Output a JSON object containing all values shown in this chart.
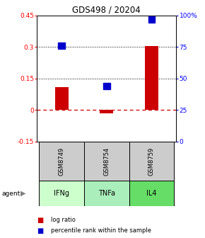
{
  "title": "GDS498 / 20204",
  "samples": [
    "GSM8749",
    "GSM8754",
    "GSM8759"
  ],
  "agents": [
    "IFNg",
    "TNFa",
    "IL4"
  ],
  "log_ratios": [
    0.11,
    -0.015,
    0.305
  ],
  "percentile_ranks": [
    76,
    44,
    97
  ],
  "ylim_left": [
    -0.15,
    0.45
  ],
  "ylim_right": [
    0,
    100
  ],
  "yticks_left": [
    -0.15,
    0.0,
    0.15,
    0.3,
    0.45
  ],
  "yticks_right": [
    0,
    25,
    50,
    75,
    100
  ],
  "ytick_labels_left": [
    "-0.15",
    "0",
    "0.15",
    "0.3",
    "0.45"
  ],
  "ytick_labels_right": [
    "0",
    "25",
    "50",
    "75",
    "100%"
  ],
  "hlines_dotted": [
    0.15,
    0.3
  ],
  "bar_color": "#cc0000",
  "square_color": "#0000cc",
  "zero_line_color": "#cc0000",
  "sample_bg_color": "#cccccc",
  "agent_colors": [
    "#ccffcc",
    "#aaeebb",
    "#66dd66"
  ],
  "legend_bar_label": "log ratio",
  "legend_sq_label": "percentile rank within the sample"
}
